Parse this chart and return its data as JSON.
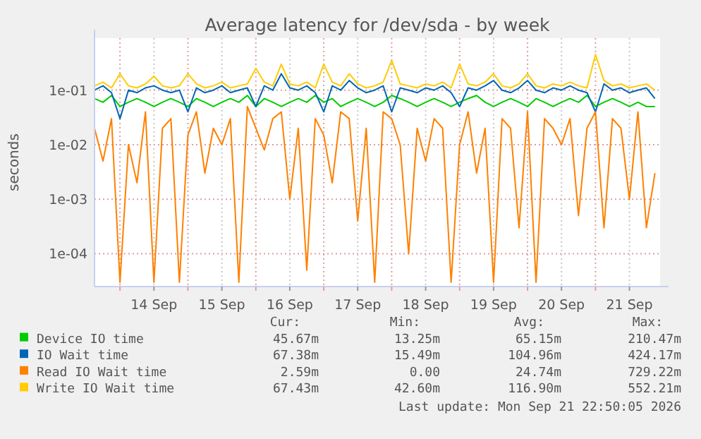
{
  "chart_data": {
    "type": "line",
    "title": "Average latency for /dev/sda - by week",
    "ylabel": "seconds",
    "log": "y",
    "grid": true,
    "legend": "bottom",
    "marker": "none",
    "line_style": "solid",
    "x": [
      "2026-09-13T15:00",
      "2026-09-13T18:00",
      "2026-09-13T21:00",
      "2026-09-14T00:00",
      "2026-09-14T03:00",
      "2026-09-14T06:00",
      "2026-09-14T09:00",
      "2026-09-14T12:00",
      "2026-09-14T15:00",
      "2026-09-14T18:00",
      "2026-09-14T21:00",
      "2026-09-15T00:00",
      "2026-09-15T03:00",
      "2026-09-15T06:00",
      "2026-09-15T09:00",
      "2026-09-15T12:00",
      "2026-09-15T15:00",
      "2026-09-15T18:00",
      "2026-09-15T21:00",
      "2026-09-16T00:00",
      "2026-09-16T03:00",
      "2026-09-16T06:00",
      "2026-09-16T09:00",
      "2026-09-16T12:00",
      "2026-09-16T15:00",
      "2026-09-16T18:00",
      "2026-09-16T21:00",
      "2026-09-17T00:00",
      "2026-09-17T03:00",
      "2026-09-17T06:00",
      "2026-09-17T09:00",
      "2026-09-17T12:00",
      "2026-09-17T15:00",
      "2026-09-17T18:00",
      "2026-09-17T21:00",
      "2026-09-18T00:00",
      "2026-09-18T03:00",
      "2026-09-18T06:00",
      "2026-09-18T09:00",
      "2026-09-18T12:00",
      "2026-09-18T15:00",
      "2026-09-18T18:00",
      "2026-09-18T21:00",
      "2026-09-19T00:00",
      "2026-09-19T03:00",
      "2026-09-19T06:00",
      "2026-09-19T09:00",
      "2026-09-19T12:00",
      "2026-09-19T15:00",
      "2026-09-19T18:00",
      "2026-09-19T21:00",
      "2026-09-20T00:00",
      "2026-09-20T03:00",
      "2026-09-20T06:00",
      "2026-09-20T09:00",
      "2026-09-20T12:00",
      "2026-09-20T15:00",
      "2026-09-20T18:00",
      "2026-09-20T21:00",
      "2026-09-21T00:00",
      "2026-09-21T03:00",
      "2026-09-21T06:00",
      "2026-09-21T09:00",
      "2026-09-21T12:00",
      "2026-09-21T15:00",
      "2026-09-21T18:00",
      "2026-09-21T21:00"
    ],
    "xlim": [
      "2026-09-13T15:00",
      "2026-09-21T22:50"
    ],
    "xticks": [
      {
        "value": "2026-09-14T00:00",
        "label": null
      },
      {
        "value": "2026-09-14T12:00",
        "label": "14 Sep"
      },
      {
        "value": "2026-09-15T00:00",
        "label": null
      },
      {
        "value": "2026-09-15T12:00",
        "label": "15 Sep"
      },
      {
        "value": "2026-09-16T00:00",
        "label": null
      },
      {
        "value": "2026-09-16T12:00",
        "label": "16 Sep"
      },
      {
        "value": "2026-09-17T00:00",
        "label": null
      },
      {
        "value": "2026-09-17T12:00",
        "label": "17 Sep"
      },
      {
        "value": "2026-09-18T00:00",
        "label": null
      },
      {
        "value": "2026-09-18T12:00",
        "label": "18 Sep"
      },
      {
        "value": "2026-09-19T00:00",
        "label": null
      },
      {
        "value": "2026-09-19T12:00",
        "label": "19 Sep"
      },
      {
        "value": "2026-09-20T00:00",
        "label": null
      },
      {
        "value": "2026-09-20T12:00",
        "label": "20 Sep"
      },
      {
        "value": "2026-09-21T00:00",
        "label": null
      },
      {
        "value": "2026-09-21T12:00",
        "label": "21 Sep"
      }
    ],
    "ylim": [
      2.5e-05,
      0.9
    ],
    "yticks": [
      {
        "value": 0.0001,
        "label": "1e-04"
      },
      {
        "value": 0.001,
        "label": "1e-03"
      },
      {
        "value": 0.01,
        "label": "1e-02"
      },
      {
        "value": 0.1,
        "label": "1e-01"
      }
    ],
    "series": [
      {
        "name": "Device IO time",
        "color": "#00cc00",
        "values": [
          0.07,
          0.06,
          0.08,
          0.05,
          0.06,
          0.07,
          0.06,
          0.05,
          0.06,
          0.07,
          0.06,
          0.05,
          0.07,
          0.06,
          0.05,
          0.06,
          0.07,
          0.06,
          0.08,
          0.05,
          0.07,
          0.06,
          0.05,
          0.06,
          0.07,
          0.06,
          0.08,
          0.06,
          0.07,
          0.05,
          0.06,
          0.07,
          0.06,
          0.05,
          0.06,
          0.08,
          0.07,
          0.06,
          0.05,
          0.06,
          0.07,
          0.06,
          0.05,
          0.06,
          0.07,
          0.08,
          0.06,
          0.05,
          0.06,
          0.07,
          0.06,
          0.05,
          0.07,
          0.06,
          0.05,
          0.06,
          0.07,
          0.06,
          0.08,
          0.05,
          0.06,
          0.07,
          0.06,
          0.05,
          0.06,
          0.05,
          0.05
        ]
      },
      {
        "name": "IO Wait time",
        "color": "#0066b3",
        "values": [
          0.1,
          0.12,
          0.09,
          0.03,
          0.1,
          0.09,
          0.11,
          0.12,
          0.1,
          0.09,
          0.1,
          0.04,
          0.11,
          0.09,
          0.1,
          0.12,
          0.09,
          0.1,
          0.11,
          0.05,
          0.12,
          0.1,
          0.2,
          0.11,
          0.1,
          0.12,
          0.09,
          0.04,
          0.12,
          0.1,
          0.15,
          0.11,
          0.09,
          0.1,
          0.12,
          0.04,
          0.11,
          0.1,
          0.09,
          0.11,
          0.1,
          0.12,
          0.09,
          0.05,
          0.11,
          0.1,
          0.12,
          0.15,
          0.1,
          0.09,
          0.11,
          0.15,
          0.1,
          0.09,
          0.11,
          0.1,
          0.12,
          0.1,
          0.09,
          0.04,
          0.13,
          0.1,
          0.11,
          0.09,
          0.1,
          0.11,
          0.07
        ]
      },
      {
        "name": "Read IO Wait time",
        "color": "#ff8000",
        "values": [
          0.02,
          0.005,
          0.03,
          3e-05,
          0.01,
          0.002,
          0.04,
          3e-05,
          0.02,
          0.03,
          3e-05,
          0.015,
          0.04,
          0.003,
          0.02,
          0.01,
          0.03,
          3e-05,
          0.05,
          0.02,
          0.008,
          0.03,
          0.04,
          0.001,
          0.02,
          5e-05,
          0.03,
          0.015,
          0.002,
          0.04,
          0.03,
          0.0004,
          0.02,
          3e-05,
          0.04,
          0.03,
          0.01,
          0.0001,
          0.02,
          0.005,
          0.03,
          0.02,
          3e-05,
          0.01,
          0.04,
          0.003,
          0.02,
          3e-05,
          0.03,
          0.02,
          0.0003,
          0.04,
          3e-05,
          0.03,
          0.02,
          0.01,
          0.03,
          0.0005,
          0.02,
          0.04,
          0.0003,
          0.03,
          0.02,
          0.001,
          0.04,
          0.0003,
          0.003
        ]
      },
      {
        "name": "Write IO Wait time",
        "color": "#ffcc00",
        "values": [
          0.12,
          0.14,
          0.11,
          0.2,
          0.12,
          0.11,
          0.13,
          0.18,
          0.12,
          0.11,
          0.12,
          0.2,
          0.13,
          0.11,
          0.12,
          0.14,
          0.11,
          0.12,
          0.13,
          0.25,
          0.14,
          0.12,
          0.3,
          0.13,
          0.12,
          0.14,
          0.11,
          0.3,
          0.14,
          0.12,
          0.2,
          0.13,
          0.11,
          0.12,
          0.14,
          0.35,
          0.13,
          0.12,
          0.11,
          0.13,
          0.12,
          0.14,
          0.11,
          0.3,
          0.13,
          0.12,
          0.14,
          0.2,
          0.12,
          0.11,
          0.13,
          0.2,
          0.12,
          0.11,
          0.13,
          0.12,
          0.14,
          0.12,
          0.11,
          0.45,
          0.15,
          0.12,
          0.13,
          0.11,
          0.12,
          0.13,
          0.1
        ]
      }
    ],
    "annotations": [
      "Cur:",
      "Min:",
      "Avg:",
      "Max:",
      "45.67m",
      "13.25m",
      "65.15m",
      "210.47m",
      "67.38m",
      "15.49m",
      "104.96m",
      "424.17m",
      "2.59m",
      "0.00",
      "24.74m",
      "729.22m",
      "67.43m",
      "42.60m",
      "116.90m",
      "552.21m",
      "Last update: Mon Sep 21 22:50:05 2026"
    ]
  }
}
